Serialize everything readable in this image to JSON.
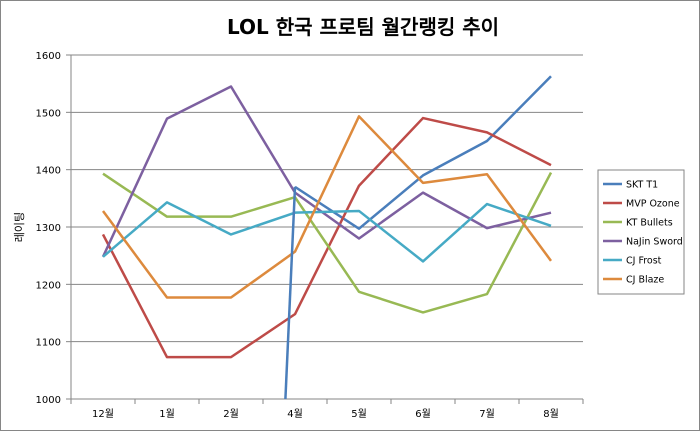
{
  "chart_data": {
    "type": "line",
    "title": "LOL 한국 프로팀 월간랭킹 추이",
    "ylabel": "레이팅",
    "xlabel": "",
    "categories": [
      "12월",
      "1월",
      "2월",
      "4월",
      "5월",
      "6월",
      "7월",
      "8월"
    ],
    "ylim": [
      1000,
      1600
    ],
    "yticks": [
      1000,
      1100,
      1200,
      1300,
      1400,
      1500,
      1600
    ],
    "grid": "horizontal",
    "legend_position": "right",
    "series": [
      {
        "name": "SKT T1",
        "color": "#4a7ebb",
        "values": [
          null,
          null,
          null,
          1370,
          1297,
          1390,
          1450,
          1563
        ]
      },
      {
        "name": "MVP Ozone",
        "color": "#be4b48",
        "values": [
          1287,
          1073,
          1073,
          1148,
          1372,
          1490,
          1465,
          1408
        ]
      },
      {
        "name": "KT Bullets",
        "color": "#98b954",
        "values": [
          1393,
          1318,
          1318,
          1352,
          1187,
          1151,
          1183,
          1395
        ]
      },
      {
        "name": "NaJin Sword",
        "color": "#7d60a0",
        "values": [
          1248,
          1489,
          1545,
          1360,
          1280,
          1360,
          1298,
          1325
        ]
      },
      {
        "name": "CJ Frost",
        "color": "#46aac5",
        "values": [
          1248,
          1343,
          1287,
          1325,
          1328,
          1240,
          1340,
          1302
        ]
      },
      {
        "name": "CJ Blaze",
        "color": "#dd8a3d",
        "values": [
          1328,
          1177,
          1177,
          1257,
          1493,
          1377,
          1392,
          1241
        ]
      }
    ],
    "extra_segments": [
      {
        "series": "SKT T1",
        "from_category": "4월",
        "from_value": 1000,
        "to_category": "4월",
        "to_value": 1370,
        "note_category_offset": -0.15
      }
    ]
  }
}
